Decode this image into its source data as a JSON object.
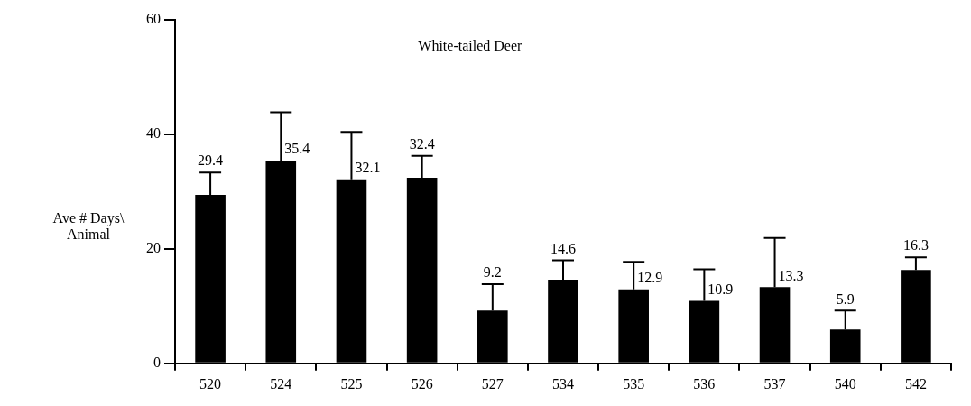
{
  "chart_data": {
    "type": "bar",
    "title": "White-tailed Deer",
    "ylabel": "Ave # Days\\ Animal",
    "categories": [
      "520",
      "524",
      "525",
      "526",
      "527",
      "534",
      "535",
      "536",
      "537",
      "540",
      "542"
    ],
    "values": [
      29.4,
      35.4,
      32.1,
      32.4,
      9.2,
      14.6,
      12.9,
      10.9,
      13.3,
      5.9,
      16.3
    ],
    "errors": [
      [
        29.4,
        33.3
      ],
      [
        35.4,
        43.8
      ],
      [
        32.1,
        40.4
      ],
      [
        32.4,
        36.2
      ],
      [
        9.2,
        13.8
      ],
      [
        14.6,
        18.0
      ],
      [
        12.9,
        17.7
      ],
      [
        10.9,
        16.4
      ],
      [
        13.3,
        21.9
      ],
      [
        5.9,
        9.2
      ],
      [
        16.3,
        18.5
      ]
    ],
    "color": "#000000",
    "ylim": [
      0,
      60
    ],
    "yticks": [
      0,
      20,
      40,
      60
    ],
    "grid": false,
    "legend": false,
    "data_labels": true
  }
}
